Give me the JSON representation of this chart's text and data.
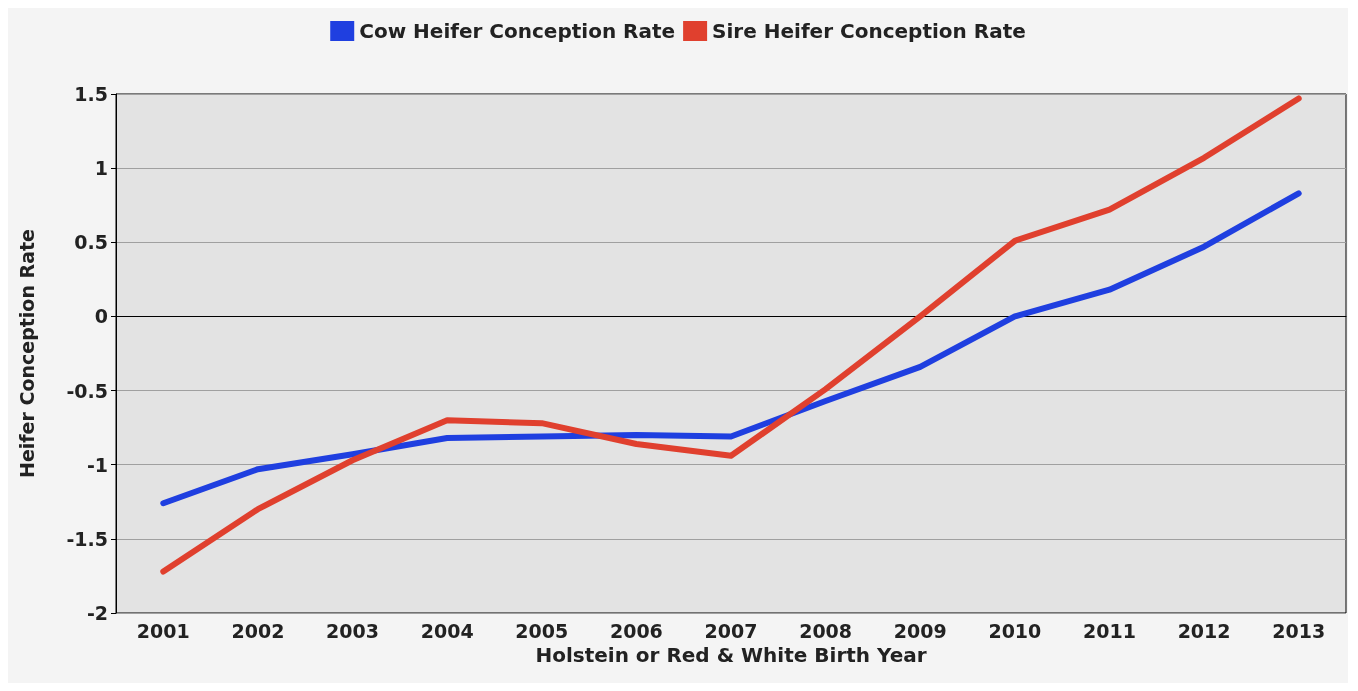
{
  "chart_data": {
    "type": "line",
    "xlabel": "Holstein or Red & White Birth Year",
    "ylabel": "Heifer Conception Rate",
    "categories": [
      "2001",
      "2002",
      "2003",
      "2004",
      "2005",
      "2006",
      "2007",
      "2008",
      "2009",
      "2010",
      "2011",
      "2012",
      "2013"
    ],
    "series": [
      {
        "name": "Cow Heifer Conception Rate",
        "color": "#1f3fe0",
        "values": [
          -1.26,
          -1.03,
          -0.93,
          -0.82,
          -0.81,
          -0.8,
          -0.81,
          -0.57,
          -0.34,
          0,
          0.18,
          0.47,
          0.83
        ]
      },
      {
        "name": "Sire Heifer Conception Rate",
        "color": "#e0402e",
        "values": [
          -1.72,
          -1.3,
          -0.97,
          -0.7,
          -0.72,
          -0.86,
          -0.94,
          -0.49,
          0,
          0.51,
          0.72,
          1.07,
          1.47
        ]
      }
    ],
    "ylim": [
      -2,
      1.5
    ],
    "yticks": [
      -2,
      -1.5,
      -1,
      -0.5,
      0,
      0.5,
      1,
      1.5
    ],
    "grid": "y",
    "legend": "top",
    "marker": "none",
    "line_style": "solid",
    "ref_lines": [
      {
        "axis": "y",
        "value": 0,
        "color": "#000000"
      }
    ]
  }
}
